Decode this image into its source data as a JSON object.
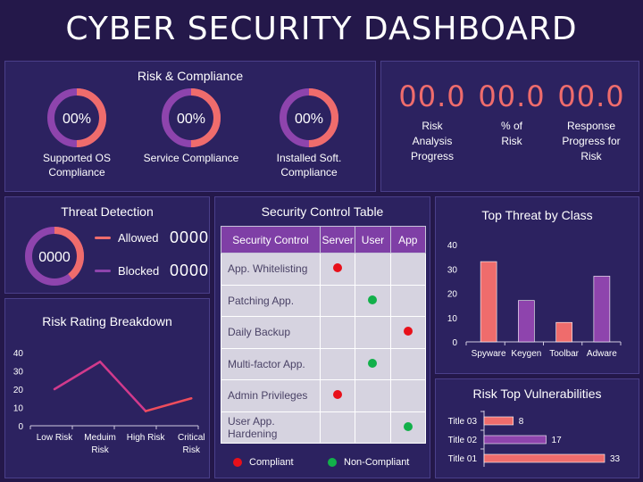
{
  "page_title": "CYBER SECURITY DASHBOARD",
  "colors": {
    "background": "#24184a",
    "panel": "#2c2260",
    "accent_red": "#ef6c6c",
    "accent_purple": "#8e44ad",
    "compliant": "#e8101a",
    "non_compliant": "#12b04a"
  },
  "risk_compliance": {
    "title": "Risk & Compliance",
    "items": [
      {
        "value": "00%",
        "label_line1": "Supported OS",
        "label_line2": "Compliance"
      },
      {
        "value": "00%",
        "label_line1": "Service Compliance",
        "label_line2": ""
      },
      {
        "value": "00%",
        "label_line1": "Installed Soft.",
        "label_line2": "Compliance"
      }
    ]
  },
  "kpis": [
    {
      "value": "00.0",
      "line1": "Risk",
      "line2": "Analysis",
      "line3": "Progress"
    },
    {
      "value": "00.0",
      "line1": "% of",
      "line2": "Risk",
      "line3": ""
    },
    {
      "value": "00.0",
      "line1": "Response",
      "line2": "Progress for",
      "line3": "Risk"
    }
  ],
  "threat_detection": {
    "title": "Threat Detection",
    "center_value": "0000",
    "allowed_label": "Allowed",
    "allowed_value": "0000",
    "blocked_label": "Blocked",
    "blocked_value": "0000"
  },
  "security_table": {
    "title": "Security Control Table",
    "headers": [
      "Security Control",
      "Server",
      "User",
      "App"
    ],
    "rows": [
      {
        "name": "App. Whitelisting",
        "name2": "",
        "server": "red",
        "user": "",
        "app": ""
      },
      {
        "name": "Patching App.",
        "name2": "",
        "server": "",
        "user": "green",
        "app": ""
      },
      {
        "name": "Daily Backup",
        "name2": "",
        "server": "",
        "user": "",
        "app": "red"
      },
      {
        "name": "Multi-factor App.",
        "name2": "",
        "server": "",
        "user": "green",
        "app": ""
      },
      {
        "name": "Admin Privileges",
        "name2": "",
        "server": "red",
        "user": "",
        "app": ""
      },
      {
        "name": "User App.",
        "name2": "Hardening",
        "server": "",
        "user": "",
        "app": "green"
      }
    ],
    "legend_compliant": "Compliant",
    "legend_non_compliant": "Non-Compliant"
  },
  "risk_rating": {
    "title": "Risk Rating Breakdown"
  },
  "top_threat": {
    "title": "Top Threat by Class"
  },
  "risk_top_vuln": {
    "title": "Risk Top Vulnerabilities"
  },
  "chart_data": [
    {
      "type": "line",
      "title": "Risk Rating Breakdown",
      "categories": [
        "Low Risk",
        "Meduim Risk",
        "High Risk",
        "Critical Risk"
      ],
      "values": [
        20,
        35,
        8,
        15
      ],
      "ylim": [
        0,
        40
      ],
      "yticks": [
        0,
        10,
        20,
        30,
        40
      ]
    },
    {
      "type": "bar",
      "title": "Top Threat by Class",
      "categories": [
        "Spyware",
        "Keygen",
        "Toolbar",
        "Adware"
      ],
      "values": [
        33,
        17,
        8,
        27
      ],
      "bar_colors": [
        "#ef6c6c",
        "#8e44ad",
        "#ef6c6c",
        "#8e44ad"
      ],
      "ylim": [
        0,
        40
      ],
      "yticks": [
        0,
        10,
        20,
        30,
        40
      ]
    },
    {
      "type": "bar",
      "orientation": "horizontal",
      "title": "Risk Top Vulnerabilities",
      "categories": [
        "Title 03",
        "Title 02",
        "Title 01"
      ],
      "values": [
        8,
        17,
        33
      ],
      "bar_colors": [
        "#ef6c6c",
        "#8e44ad",
        "#ef6c6c"
      ]
    }
  ]
}
